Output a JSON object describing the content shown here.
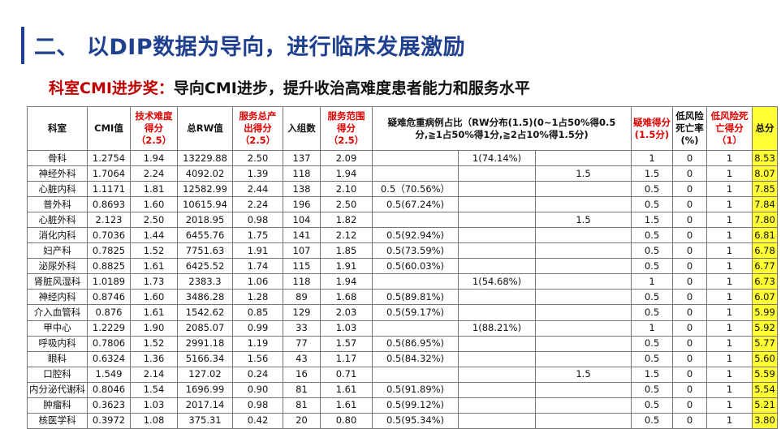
{
  "title": "二、 以DIP数据为导向，进行临床发展激励",
  "subtitle": {
    "label": "科室CMI进步奖：",
    "text": "导向CMI进步，提升收治高难度患者能力和服务水平"
  },
  "table": {
    "headers": {
      "dept": "科室",
      "cmi": "CMI值",
      "tech_line1": "技术难度",
      "tech_line2": "得分",
      "tech_line3": "（2.5）",
      "rw": "总RW值",
      "serv_line1": "服务总产",
      "serv_line2": "出得分",
      "serv_line3": "（2.5）",
      "admissions": "入组数",
      "range_line1": "服务范围",
      "range_line2": "得分",
      "range_line3": "（2.5）",
      "severe": "疑难危重病例占比（RW分布(1.5)(0~1占50%得0.5分,≧1占50%得1分,≧2占10%得1.5分)",
      "diff_line1": "疑难得分",
      "diff_line2": "(1.5分)",
      "lowrisk_line1": "低风险",
      "lowrisk_line2": "死亡率",
      "lowrisk_line3": "(%)",
      "lowscore_line1": "低风险死",
      "lowscore_line2": "亡得分",
      "lowscore_line3": "（1）",
      "total": "总分"
    },
    "rows": [
      {
        "dept": "骨科",
        "cmi": "1.2754",
        "tech": "1.94",
        "rw": "13229.88",
        "serv": "2.50",
        "adm": "137",
        "range": "2.09",
        "s1": "",
        "s2": "1(74.14%)",
        "s3": "",
        "diff": "1",
        "lrate": "0",
        "lscore": "1",
        "total": "8.53"
      },
      {
        "dept": "神经外科",
        "cmi": "1.7064",
        "tech": "2.24",
        "rw": "4092.02",
        "serv": "1.39",
        "adm": "118",
        "range": "1.94",
        "s1": "",
        "s2": "",
        "s3": "1.5",
        "diff": "1.5",
        "lrate": "0",
        "lscore": "1",
        "total": "8.07"
      },
      {
        "dept": "心脏内科",
        "cmi": "1.1171",
        "tech": "1.81",
        "rw": "12582.99",
        "serv": "2.44",
        "adm": "138",
        "range": "2.10",
        "s1": "0.5（70.56%）",
        "s2": "",
        "s3": "",
        "diff": "0.5",
        "lrate": "0",
        "lscore": "1",
        "total": "7.85"
      },
      {
        "dept": "普外科",
        "cmi": "0.8693",
        "tech": "1.60",
        "rw": "10615.94",
        "serv": "2.24",
        "adm": "196",
        "range": "2.50",
        "s1": "0.5(67.24%)",
        "s2": "",
        "s3": "",
        "diff": "0.5",
        "lrate": "0",
        "lscore": "1",
        "total": "7.84"
      },
      {
        "dept": "心脏外科",
        "cmi": "2.123",
        "tech": "2.50",
        "rw": "2018.95",
        "serv": "0.98",
        "adm": "104",
        "range": "1.82",
        "s1": "",
        "s2": "",
        "s3": "1.5",
        "diff": "1.5",
        "lrate": "0",
        "lscore": "1",
        "total": "7.80"
      },
      {
        "dept": "消化内科",
        "cmi": "0.7036",
        "tech": "1.44",
        "rw": "6455.76",
        "serv": "1.75",
        "adm": "141",
        "range": "2.12",
        "s1": "0.5(92.94%)",
        "s2": "",
        "s3": "",
        "diff": "0.5",
        "lrate": "0",
        "lscore": "1",
        "total": "6.81"
      },
      {
        "dept": "妇产科",
        "cmi": "0.7825",
        "tech": "1.52",
        "rw": "7751.63",
        "serv": "1.91",
        "adm": "107",
        "range": "1.85",
        "s1": "0.5(73.59%)",
        "s2": "",
        "s3": "",
        "diff": "0.5",
        "lrate": "0",
        "lscore": "1",
        "total": "6.78"
      },
      {
        "dept": "泌尿外科",
        "cmi": "0.8825",
        "tech": "1.61",
        "rw": "6425.52",
        "serv": "1.74",
        "adm": "115",
        "range": "1.91",
        "s1": "0.5(60.03%)",
        "s2": "",
        "s3": "",
        "diff": "0.5",
        "lrate": "0",
        "lscore": "1",
        "total": "6.77"
      },
      {
        "dept": "肾脏风湿科",
        "cmi": "1.0189",
        "tech": "1.73",
        "rw": "2383.3",
        "serv": "1.06",
        "adm": "118",
        "range": "1.94",
        "s1": "",
        "s2": "1(54.68%)",
        "s3": "",
        "diff": "1",
        "lrate": "0",
        "lscore": "1",
        "total": "6.73"
      },
      {
        "dept": "神经内科",
        "cmi": "0.8746",
        "tech": "1.60",
        "rw": "3486.28",
        "serv": "1.28",
        "adm": "89",
        "range": "1.68",
        "s1": "0.5(89.81%)",
        "s2": "",
        "s3": "",
        "diff": "0.5",
        "lrate": "0",
        "lscore": "1",
        "total": "6.07"
      },
      {
        "dept": "介入血管科",
        "cmi": "0.876",
        "tech": "1.61",
        "rw": "1542.62",
        "serv": "0.85",
        "adm": "129",
        "range": "2.03",
        "s1": "0.5(59.17%)",
        "s2": "",
        "s3": "",
        "diff": "0.5",
        "lrate": "0",
        "lscore": "1",
        "total": "5.99"
      },
      {
        "dept": "甲中心",
        "cmi": "1.2229",
        "tech": "1.90",
        "rw": "2085.07",
        "serv": "0.99",
        "adm": "33",
        "range": "1.03",
        "s1": "",
        "s2": "1(88.21%)",
        "s3": "",
        "diff": "1",
        "lrate": "0",
        "lscore": "1",
        "total": "5.92"
      },
      {
        "dept": "呼吸内科",
        "cmi": "0.7806",
        "tech": "1.52",
        "rw": "2991.18",
        "serv": "1.19",
        "adm": "77",
        "range": "1.57",
        "s1": "0.5(86.95%)",
        "s2": "",
        "s3": "",
        "diff": "0.5",
        "lrate": "0",
        "lscore": "1",
        "total": "5.77"
      },
      {
        "dept": "眼科",
        "cmi": "0.6324",
        "tech": "1.36",
        "rw": "5166.34",
        "serv": "1.56",
        "adm": "43",
        "range": "1.17",
        "s1": "0.5(84.32%)",
        "s2": "",
        "s3": "",
        "diff": "0.5",
        "lrate": "0",
        "lscore": "1",
        "total": "5.60"
      },
      {
        "dept": "口腔科",
        "cmi": "1.549",
        "tech": "2.14",
        "rw": "127.02",
        "serv": "0.24",
        "adm": "16",
        "range": "0.71",
        "s1": "",
        "s2": "",
        "s3": "1.5",
        "diff": "1.5",
        "lrate": "0",
        "lscore": "1",
        "total": "5.59"
      },
      {
        "dept": "内分泌代谢科",
        "cmi": "0.8046",
        "tech": "1.54",
        "rw": "1696.99",
        "serv": "0.90",
        "adm": "81",
        "range": "1.61",
        "s1": "0.5(91.89%)",
        "s2": "",
        "s3": "",
        "diff": "0.5",
        "lrate": "0",
        "lscore": "1",
        "total": "5.54"
      },
      {
        "dept": "肿瘤科",
        "cmi": "0.3623",
        "tech": "1.03",
        "rw": "2017.14",
        "serv": "0.98",
        "adm": "81",
        "range": "1.61",
        "s1": "0.5(99.12%)",
        "s2": "",
        "s3": "",
        "diff": "0.5",
        "lrate": "0",
        "lscore": "1",
        "total": "5.21"
      },
      {
        "dept": "核医学科",
        "cmi": "0.3972",
        "tech": "1.08",
        "rw": "375.31",
        "serv": "0.42",
        "adm": "20",
        "range": "0.80",
        "s1": "0.5(95.34%)",
        "s2": "",
        "s3": "",
        "diff": "0.5",
        "lrate": "0",
        "lscore": "1",
        "total": "3.80"
      }
    ]
  }
}
